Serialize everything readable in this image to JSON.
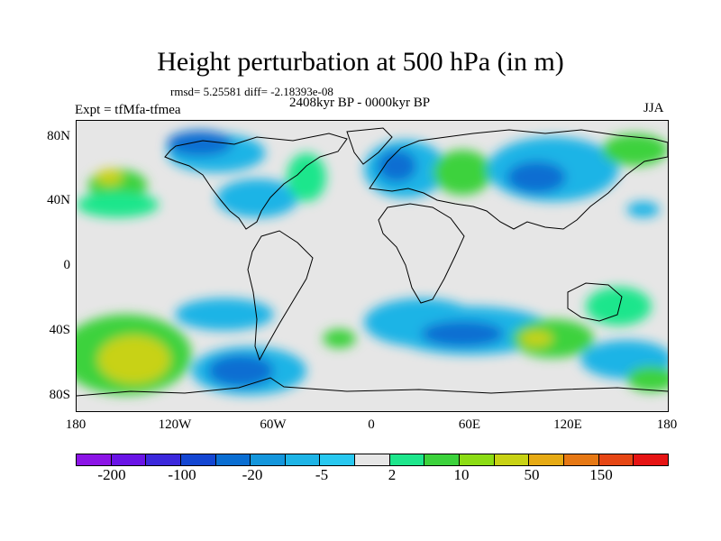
{
  "header": {
    "title": "Height perturbation at 500 hPa (in m)",
    "rmsd_text": "rmsd= 5.25581 diff= -2.18393e-08",
    "period": "2408kyr BP - 0000kyr BP",
    "experiment": "Expt = tfMfa-tfmea",
    "season": "JJA"
  },
  "axes": {
    "y_ticks": [
      "80N",
      "40N",
      "0",
      "40S",
      "80S"
    ],
    "y_values": [
      80,
      40,
      0,
      -40,
      -80
    ],
    "x_ticks": [
      "180",
      "120W",
      "60W",
      "0",
      "60E",
      "120E",
      "180"
    ],
    "x_values": [
      -180,
      -120,
      -60,
      0,
      60,
      120,
      180
    ]
  },
  "colorbar": {
    "colors": [
      "#8c14e6",
      "#6a14e6",
      "#3c28dc",
      "#1446d2",
      "#0a6ed2",
      "#1496dc",
      "#1eb4e6",
      "#28c8f0",
      "#e6e6e6",
      "#1ee68c",
      "#3cd23c",
      "#8cdc14",
      "#c8d214",
      "#e6aa14",
      "#e67814",
      "#e64614",
      "#e61414"
    ],
    "labels": [
      "-200",
      "-100",
      "-20",
      "-5",
      "2",
      "10",
      "50",
      "150"
    ]
  },
  "map_data": {
    "projection": "cylindrical-equidistant",
    "lon_range": [
      -180,
      180
    ],
    "lat_range": [
      -90,
      90
    ],
    "anomaly_blobs": [
      {
        "lon": -155,
        "lat": 50,
        "rlon": 18,
        "rlat": 10,
        "level": 10
      },
      {
        "lon": -160,
        "lat": 55,
        "rlon": 8,
        "rlat": 5,
        "level": 50
      },
      {
        "lon": -155,
        "lat": 38,
        "rlon": 25,
        "rlat": 8,
        "level": 2
      },
      {
        "lon": -95,
        "lat": 70,
        "rlon": 30,
        "rlat": 12,
        "level": -5
      },
      {
        "lon": -105,
        "lat": 76,
        "rlon": 20,
        "rlat": 8,
        "level": -20
      },
      {
        "lon": -70,
        "lat": 42,
        "rlon": 25,
        "rlat": 12,
        "level": -5
      },
      {
        "lon": -40,
        "lat": 55,
        "rlon": 12,
        "rlat": 15,
        "level": 2
      },
      {
        "lon": 20,
        "lat": 60,
        "rlon": 25,
        "rlat": 18,
        "level": -5
      },
      {
        "lon": 15,
        "lat": 62,
        "rlon": 12,
        "rlat": 10,
        "level": -20
      },
      {
        "lon": 55,
        "lat": 58,
        "rlon": 18,
        "rlat": 14,
        "level": 10
      },
      {
        "lon": 110,
        "lat": 60,
        "rlon": 40,
        "rlat": 20,
        "level": -5
      },
      {
        "lon": 100,
        "lat": 55,
        "rlon": 18,
        "rlat": 10,
        "level": -20
      },
      {
        "lon": 160,
        "lat": 72,
        "rlon": 20,
        "rlat": 10,
        "level": 10
      },
      {
        "lon": 165,
        "lat": 35,
        "rlon": 10,
        "rlat": 5,
        "level": -5
      },
      {
        "lon": -150,
        "lat": -55,
        "rlon": 40,
        "rlat": 25,
        "level": 10
      },
      {
        "lon": -145,
        "lat": -58,
        "rlon": 22,
        "rlat": 15,
        "level": 50
      },
      {
        "lon": -90,
        "lat": -30,
        "rlon": 30,
        "rlat": 10,
        "level": -5
      },
      {
        "lon": -75,
        "lat": -65,
        "rlon": 35,
        "rlat": 15,
        "level": -5
      },
      {
        "lon": -80,
        "lat": -65,
        "rlon": 20,
        "rlat": 10,
        "level": -20
      },
      {
        "lon": -20,
        "lat": -45,
        "rlon": 10,
        "rlat": 6,
        "level": 10
      },
      {
        "lon": 30,
        "lat": -35,
        "rlon": 35,
        "rlat": 15,
        "level": -5
      },
      {
        "lon": 60,
        "lat": -40,
        "rlon": 50,
        "rlat": 15,
        "level": -5
      },
      {
        "lon": 55,
        "lat": -42,
        "rlon": 25,
        "rlat": 8,
        "level": -20
      },
      {
        "lon": 110,
        "lat": -45,
        "rlon": 25,
        "rlat": 12,
        "level": 10
      },
      {
        "lon": 100,
        "lat": -45,
        "rlon": 10,
        "rlat": 5,
        "level": 50
      },
      {
        "lon": 150,
        "lat": -25,
        "rlon": 20,
        "rlat": 12,
        "level": 2
      },
      {
        "lon": 155,
        "lat": -58,
        "rlon": 28,
        "rlat": 12,
        "level": -5
      },
      {
        "lon": 170,
        "lat": -70,
        "rlon": 15,
        "rlat": 8,
        "level": 10
      }
    ]
  }
}
